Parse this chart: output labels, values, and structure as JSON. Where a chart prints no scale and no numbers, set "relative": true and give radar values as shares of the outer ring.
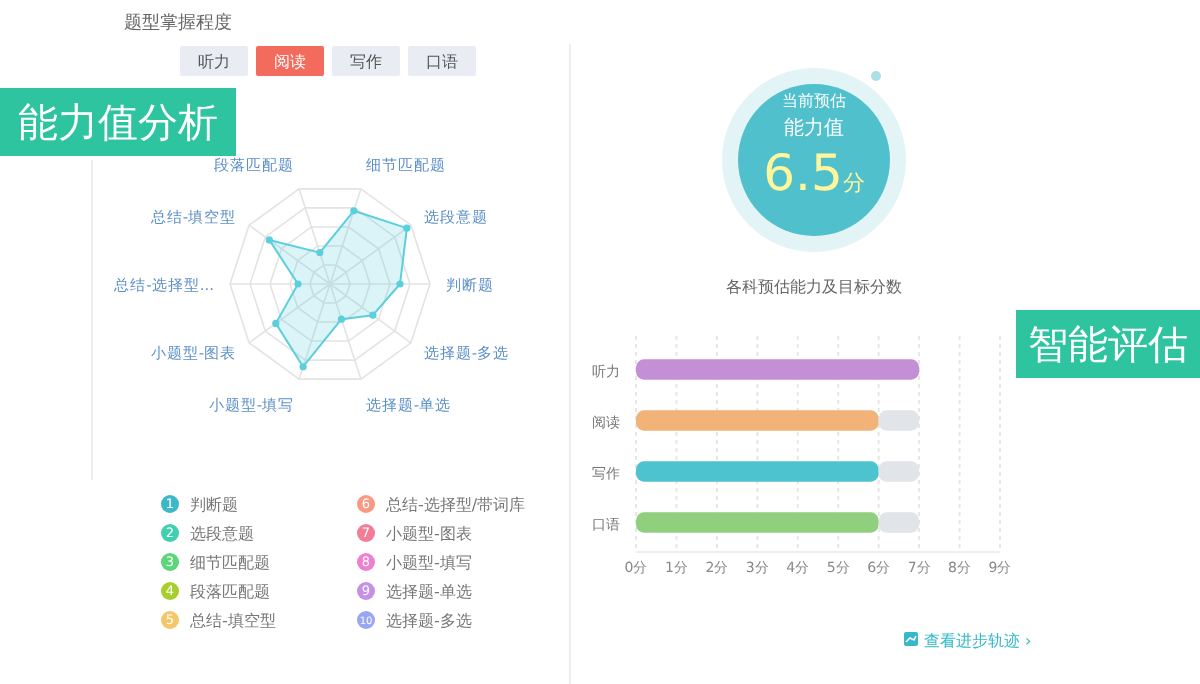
{
  "chart_data": [
    {
      "type": "radar",
      "title": "题型掌握程度",
      "relative": true,
      "categories": [
        "细节匹配题",
        "选段意题",
        "判断题",
        "选择题-多选",
        "选择题-单选",
        "小题型-填写",
        "小题型-图表",
        "总结-选择型...",
        "总结-填空型",
        "段落匹配题"
      ],
      "series": [
        {
          "color": "#5ccfdc",
          "values": [
            0.77,
            0.95,
            0.7,
            0.53,
            0.37,
            0.87,
            0.67,
            0.32,
            0.75,
            0.33
          ]
        }
      ],
      "marker": "circle",
      "grid": true,
      "annotations": [
        "1 判断题",
        "2 选段意题",
        "3 细节匹配题",
        "4 段落匹配题",
        "5 总结-填空型",
        "6 总结-选择型/带词库",
        "7 小题型-图表",
        "8 小题型-填写",
        "9 选择题-单选",
        "10 选择题-多选"
      ]
    },
    {
      "type": "bar",
      "orientation": "horizontal",
      "stacked": true,
      "title": "各科预估能力及目标分数",
      "categories": [
        "听力",
        "阅读",
        "写作",
        "口语"
      ],
      "series": [
        {
          "colors": [
            "#c58fd6",
            "#f2b378",
            "#4dc3cf",
            "#8fcf7e"
          ],
          "values": [
            7,
            6,
            6,
            6
          ]
        },
        {
          "color": "#e1e4e8",
          "values": [
            0,
            1,
            1,
            1
          ]
        }
      ],
      "xlim": [
        0,
        9
      ],
      "xticks": [
        {
          "value": 0,
          "label": "0分"
        },
        {
          "value": 1,
          "label": "1分"
        },
        {
          "value": 2,
          "label": "2分"
        },
        {
          "value": 3,
          "label": "3分"
        },
        {
          "value": 4,
          "label": "4分"
        },
        {
          "value": 5,
          "label": "5分"
        },
        {
          "value": 6,
          "label": "6分"
        },
        {
          "value": 7,
          "label": "7分"
        },
        {
          "value": 8,
          "label": "8分"
        },
        {
          "value": 9,
          "label": "9分"
        }
      ],
      "grid": "x"
    },
    {
      "type": "other",
      "annotations": [
        "听力",
        "阅读",
        "写作",
        "口语",
        "当前预估",
        "能力值",
        "6.5分",
        "能力值分析",
        "智能评估",
        "查看进步轨迹 ›"
      ]
    }
  ]
}
